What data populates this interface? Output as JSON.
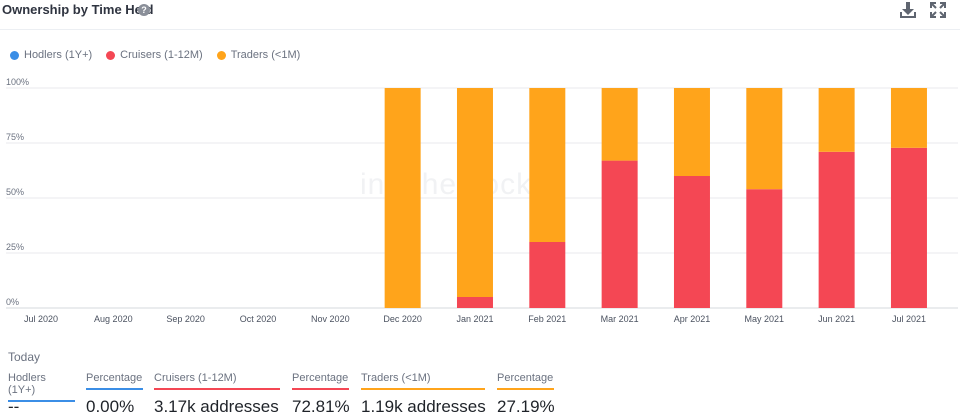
{
  "header": {
    "title": "Ownership by Time Held",
    "help_icon": "question-circle-icon",
    "download_icon": "download-icon",
    "expand_icon": "expand-icon"
  },
  "legend": [
    {
      "label": "Hodlers (1Y+)",
      "color": "#3b8ee6"
    },
    {
      "label": "Cruisers (1-12M)",
      "color": "#f44754"
    },
    {
      "label": "Traders (<1M)",
      "color": "#ffa41b"
    }
  ],
  "chart_data": {
    "type": "bar",
    "stacked": true,
    "categories": [
      "Jul 2020",
      "Aug 2020",
      "Sep 2020",
      "Oct 2020",
      "Nov 2020",
      "Dec 2020",
      "Jan 2021",
      "Feb 2021",
      "Mar 2021",
      "Apr 2021",
      "May 2021",
      "Jun 2021",
      "Jul 2021"
    ],
    "series": [
      {
        "name": "Hodlers (1Y+)",
        "color": "#3b8ee6",
        "values": [
          0,
          0,
          0,
          0,
          0,
          0,
          0,
          0,
          0,
          0,
          0,
          0,
          0
        ]
      },
      {
        "name": "Cruisers (1-12M)",
        "color": "#f44754",
        "values": [
          0,
          0,
          0,
          0,
          0,
          0,
          5,
          30,
          67,
          60,
          54,
          71,
          72.81
        ]
      },
      {
        "name": "Traders (<1M)",
        "color": "#ffa41b",
        "values": [
          0,
          0,
          0,
          0,
          0,
          100,
          95,
          70,
          33,
          40,
          46,
          29,
          27.19
        ]
      }
    ],
    "y_ticks": [
      "0%",
      "25%",
      "50%",
      "75%",
      "100%"
    ],
    "ylim": [
      0,
      100
    ],
    "grid": true,
    "legend_position": "top-left"
  },
  "summary": {
    "heading": "Today",
    "columns": [
      {
        "label": "Hodlers (1Y+)",
        "value": "--",
        "color": "#3b8ee6"
      },
      {
        "label": "Percentage",
        "value": "0.00%",
        "color": "#3b8ee6"
      },
      {
        "label": "Cruisers (1-12M)",
        "value": "3.17k addresses",
        "color": "#f44754"
      },
      {
        "label": "Percentage",
        "value": "72.81%",
        "color": "#f44754"
      },
      {
        "label": "Traders (<1M)",
        "value": "1.19k addresses",
        "color": "#ffa41b"
      },
      {
        "label": "Percentage",
        "value": "27.19%",
        "color": "#ffa41b"
      }
    ]
  }
}
